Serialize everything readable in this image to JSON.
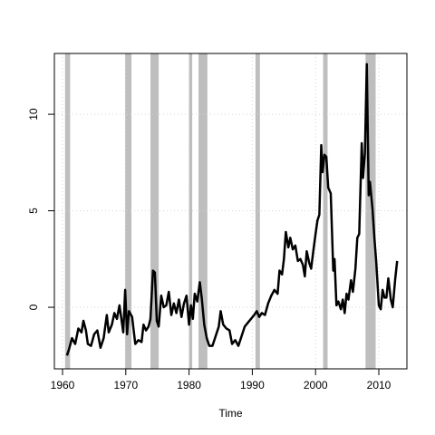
{
  "chart_data": {
    "type": "line",
    "x_label": "Time",
    "xlim": [
      1958.71,
      2014.44
    ],
    "ylim": [
      -3.19,
      13.15
    ],
    "xticks": [
      1960,
      1970,
      1980,
      1990,
      2000,
      2010
    ],
    "yticks": [
      0,
      5,
      10
    ],
    "grid": true,
    "shaded_color": "#bebebe",
    "shaded_periods": [
      [
        1960.4,
        1961.2
      ],
      [
        1969.9,
        1970.9
      ],
      [
        1973.9,
        1975.2
      ],
      [
        1980.0,
        1980.5
      ],
      [
        1981.5,
        1982.9
      ],
      [
        1990.5,
        1991.2
      ],
      [
        2001.2,
        2001.9
      ],
      [
        2007.9,
        2009.5
      ]
    ],
    "series": [
      {
        "color": "#000000",
        "x": [
          1960.7,
          1961,
          1961.5,
          1962,
          1962.5,
          1963,
          1963.3,
          1963.7,
          1964,
          1964.5,
          1965,
          1965.5,
          1966,
          1966.5,
          1967,
          1967.3,
          1967.8,
          1968.2,
          1968.6,
          1969,
          1969.3,
          1969.6,
          1969.9,
          1970.2,
          1970.5,
          1971,
          1971.5,
          1972,
          1972.5,
          1972.8,
          1973.2,
          1973.6,
          1973.9,
          1974.3,
          1974.6,
          1974.9,
          1975.2,
          1975.6,
          1976,
          1976.4,
          1976.8,
          1977.2,
          1977.6,
          1978,
          1978.4,
          1978.8,
          1979.2,
          1979.6,
          1980,
          1980.3,
          1980.6,
          1980.9,
          1981.3,
          1981.7,
          1982,
          1982.4,
          1982.8,
          1983.2,
          1983.7,
          1984.2,
          1984.7,
          1985,
          1985.4,
          1985.9,
          1986.4,
          1986.8,
          1987.3,
          1987.8,
          1988.3,
          1988.8,
          1989.3,
          1989.8,
          1990.3,
          1990.7,
          1991.1,
          1991.5,
          1992,
          1992.5,
          1993,
          1993.5,
          1994,
          1994.3,
          1994.7,
          1995,
          1995.3,
          1995.7,
          1996,
          1996.4,
          1996.8,
          1997.2,
          1997.6,
          1998,
          1998.3,
          1998.6,
          1999,
          1999.3,
          1999.6,
          2000,
          2000.3,
          2000.6,
          2000.9,
          2001.1,
          2001.4,
          2001.7,
          2002,
          2002.4,
          2002.8,
          2003,
          2003.3,
          2003.6,
          2004,
          2004.3,
          2004.6,
          2004.9,
          2005.2,
          2005.6,
          2005.9,
          2006.3,
          2006.6,
          2006.9,
          2007.3,
          2007.5,
          2007.8,
          2008.1,
          2008.4,
          2008.6,
          2009,
          2009.3,
          2009.6,
          2010,
          2010.3,
          2010.6,
          2010.9,
          2011.2,
          2011.5,
          2011.9,
          2012.2,
          2012.6,
          2012.9
        ],
        "values": [
          -2.5,
          -2.2,
          -1.6,
          -1.9,
          -1.1,
          -1.3,
          -0.7,
          -1.2,
          -1.9,
          -2.0,
          -1.4,
          -1.2,
          -2.1,
          -1.6,
          -0.4,
          -1.3,
          -0.9,
          -0.3,
          -0.6,
          0.1,
          -0.6,
          -1.3,
          0.9,
          -1.4,
          -0.2,
          -0.5,
          -1.9,
          -1.7,
          -1.8,
          -0.9,
          -1.2,
          -1.0,
          -0.6,
          1.9,
          1.8,
          -0.7,
          -1.0,
          0.6,
          0.0,
          0.1,
          0.8,
          -0.4,
          0.2,
          -0.3,
          0.4,
          -0.5,
          0.2,
          0.6,
          -0.9,
          0.1,
          -0.6,
          0.7,
          0.3,
          1.3,
          0.5,
          -0.9,
          -1.6,
          -2.0,
          -2.0,
          -1.5,
          -1.0,
          -0.2,
          -0.9,
          -1.1,
          -1.2,
          -1.9,
          -1.7,
          -2.0,
          -1.5,
          -1.0,
          -0.8,
          -0.6,
          -0.4,
          -0.2,
          -0.5,
          -0.3,
          -0.4,
          0.2,
          0.6,
          0.9,
          0.7,
          1.9,
          1.7,
          2.5,
          3.9,
          3.1,
          3.6,
          3.0,
          3.2,
          2.4,
          2.5,
          2.2,
          1.6,
          2.9,
          2.3,
          2.0,
          2.8,
          3.8,
          4.5,
          4.8,
          8.4,
          7.0,
          7.9,
          7.8,
          6.2,
          5.9,
          1.9,
          2.5,
          0.1,
          0.3,
          -0.1,
          0.4,
          -0.3,
          0.7,
          0.4,
          1.4,
          0.8,
          2.0,
          3.6,
          3.8,
          8.5,
          6.7,
          8.0,
          12.6,
          5.8,
          6.5,
          5.1,
          3.6,
          2.3,
          0.1,
          -0.1,
          0.9,
          0.5,
          0.5,
          1.5,
          0.4,
          0.0,
          1.5,
          2.4
        ]
      }
    ]
  }
}
